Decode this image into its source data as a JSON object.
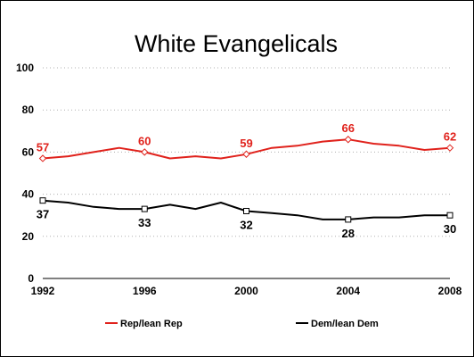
{
  "chart_data": {
    "type": "line",
    "title": "White Evangelicals",
    "xlabel": "",
    "ylabel": "",
    "ylim": [
      0,
      100
    ],
    "xlim": [
      1992,
      2008
    ],
    "y_ticks": [
      0,
      20,
      40,
      60,
      80,
      100
    ],
    "x_ticks": [
      1992,
      1996,
      2000,
      2004,
      2008
    ],
    "grid": "horizontal dotted",
    "legend_position": "bottom",
    "series": [
      {
        "name": "Rep/lean Rep",
        "color": "#e0221c",
        "marker": "diamond",
        "points": [
          {
            "x": 1992,
            "y": 57
          },
          {
            "x": 1993,
            "y": 58
          },
          {
            "x": 1994,
            "y": 60
          },
          {
            "x": 1995,
            "y": 62
          },
          {
            "x": 1996,
            "y": 60
          },
          {
            "x": 1997,
            "y": 57
          },
          {
            "x": 1998,
            "y": 58
          },
          {
            "x": 1999,
            "y": 57
          },
          {
            "x": 2000,
            "y": 59
          },
          {
            "x": 2001,
            "y": 62
          },
          {
            "x": 2002,
            "y": 63
          },
          {
            "x": 2003,
            "y": 65
          },
          {
            "x": 2004,
            "y": 66
          },
          {
            "x": 2005,
            "y": 64
          },
          {
            "x": 2006,
            "y": 63
          },
          {
            "x": 2007,
            "y": 61
          },
          {
            "x": 2008,
            "y": 62
          }
        ],
        "labeled": [
          {
            "x": 1992,
            "y": 57,
            "text": "57"
          },
          {
            "x": 1996,
            "y": 60,
            "text": "60"
          },
          {
            "x": 2000,
            "y": 59,
            "text": "59"
          },
          {
            "x": 2004,
            "y": 66,
            "text": "66"
          },
          {
            "x": 2008,
            "y": 62,
            "text": "62"
          }
        ]
      },
      {
        "name": "Dem/lean Dem",
        "color": "#000000",
        "marker": "square",
        "points": [
          {
            "x": 1992,
            "y": 37
          },
          {
            "x": 1993,
            "y": 36
          },
          {
            "x": 1994,
            "y": 34
          },
          {
            "x": 1995,
            "y": 33
          },
          {
            "x": 1996,
            "y": 33
          },
          {
            "x": 1997,
            "y": 35
          },
          {
            "x": 1998,
            "y": 33
          },
          {
            "x": 1999,
            "y": 36
          },
          {
            "x": 2000,
            "y": 32
          },
          {
            "x": 2001,
            "y": 31
          },
          {
            "x": 2002,
            "y": 30
          },
          {
            "x": 2003,
            "y": 28
          },
          {
            "x": 2004,
            "y": 28
          },
          {
            "x": 2005,
            "y": 29
          },
          {
            "x": 2006,
            "y": 29
          },
          {
            "x": 2007,
            "y": 30
          },
          {
            "x": 2008,
            "y": 30
          }
        ],
        "labeled": [
          {
            "x": 1992,
            "y": 37,
            "text": "37"
          },
          {
            "x": 1996,
            "y": 33,
            "text": "33"
          },
          {
            "x": 2000,
            "y": 32,
            "text": "32"
          },
          {
            "x": 2004,
            "y": 28,
            "text": "28"
          },
          {
            "x": 2008,
            "y": 30,
            "text": "30"
          }
        ]
      }
    ]
  }
}
